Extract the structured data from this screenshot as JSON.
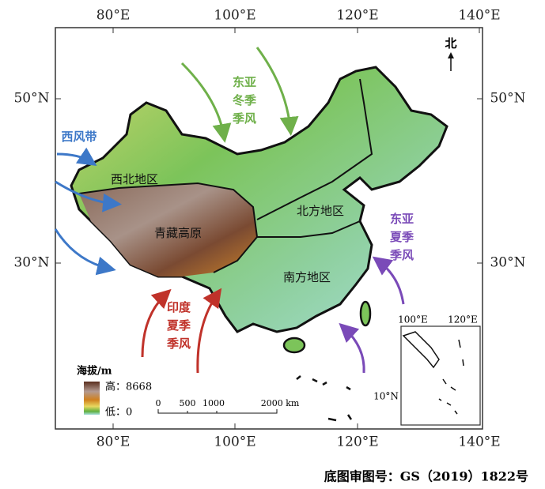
{
  "axes": {
    "top": [
      "80°E",
      "100°E",
      "120°E",
      "140°E"
    ],
    "bottom": [
      "80°E",
      "100°E",
      "120°E",
      "140°E"
    ],
    "left": [
      "50°N",
      "30°N"
    ],
    "right": [
      "50°N",
      "30°N"
    ]
  },
  "north": "北",
  "labels": {
    "westerlies": "西风带",
    "winter_monsoon": [
      "东亚",
      "冬季",
      "季风"
    ],
    "east_summer_monsoon": [
      "东亚",
      "夏季",
      "季风"
    ],
    "india_summer_monsoon": [
      "印度",
      "夏季",
      "季风"
    ]
  },
  "regions": [
    "西北地区",
    "青藏高原",
    "北方地区",
    "南方地区"
  ],
  "legend": {
    "title": "海拔/m",
    "high": "高：8668",
    "low": "低：0"
  },
  "scale": [
    "0",
    "500",
    "1000",
    "2000 km"
  ],
  "inset": {
    "top": [
      "100°E",
      "120°E"
    ],
    "left": "10°N"
  },
  "caption": "底图审图号：GS（2019）1822号"
}
